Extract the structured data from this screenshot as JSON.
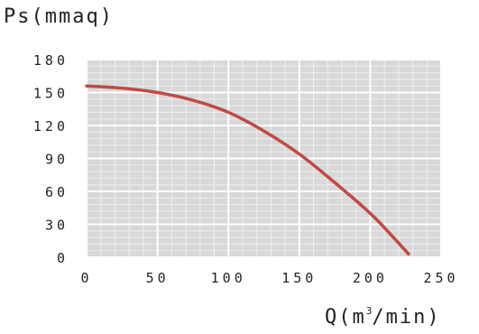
{
  "chart_data": {
    "type": "line",
    "title": "",
    "ylabel": "Ps(mmaq)",
    "xlabel": {
      "base": "Q(m",
      "sup": "3",
      "rest": "/min)"
    },
    "xlim": [
      0,
      250
    ],
    "ylim": [
      0,
      180
    ],
    "xticks": [
      0,
      50,
      100,
      150,
      200,
      250
    ],
    "yticks": [
      0,
      30,
      60,
      90,
      120,
      150,
      180
    ],
    "xtick_labels": [
      "0",
      "50",
      "100",
      "150",
      "200",
      "250"
    ],
    "ytick_labels": [
      "0",
      "30",
      "60",
      "90",
      "120",
      "150",
      "180"
    ],
    "grid": true,
    "grid_minor_step": {
      "x": 10,
      "y": 6
    },
    "colors": {
      "line": "#bf4a45",
      "plot_bg": "#d8d8d8",
      "grid_major": "#ffffff",
      "grid_minor": "#eeeeee"
    },
    "series": [
      {
        "name": "",
        "x": [
          0,
          25,
          50,
          75,
          100,
          125,
          150,
          175,
          200,
          215,
          227
        ],
        "y": [
          156,
          154,
          150,
          143,
          132,
          115,
          94,
          68,
          40,
          20,
          3
        ]
      }
    ]
  }
}
